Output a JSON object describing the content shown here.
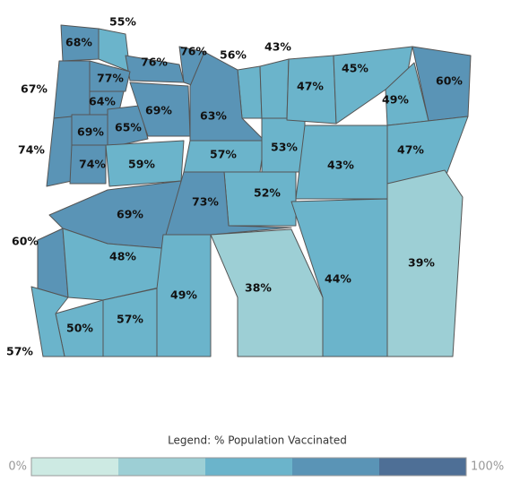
{
  "map": {
    "regions": [
      {
        "value": 68,
        "label": "68%"
      },
      {
        "value": 55,
        "label": "55%"
      },
      {
        "value": 76,
        "label": "76%"
      },
      {
        "value": 76,
        "label": "76%"
      },
      {
        "value": 56,
        "label": "56%"
      },
      {
        "value": 43,
        "label": "43%"
      },
      {
        "value": 67,
        "label": "67%"
      },
      {
        "value": 77,
        "label": "77%"
      },
      {
        "value": 64,
        "label": "64%"
      },
      {
        "value": 74,
        "label": "74%"
      },
      {
        "value": 69,
        "label": "69%"
      },
      {
        "value": 65,
        "label": "65%"
      },
      {
        "value": 69,
        "label": "69%"
      },
      {
        "value": 63,
        "label": "63%"
      },
      {
        "value": 74,
        "label": "74%"
      },
      {
        "value": 59,
        "label": "59%"
      },
      {
        "value": 57,
        "label": "57%"
      },
      {
        "value": 53,
        "label": "53%"
      },
      {
        "value": 43,
        "label": "43%"
      },
      {
        "value": 47,
        "label": "47%"
      },
      {
        "value": 45,
        "label": "45%"
      },
      {
        "value": 49,
        "label": "49%"
      },
      {
        "value": 60,
        "label": "60%"
      },
      {
        "value": 47,
        "label": "47%"
      },
      {
        "value": 52,
        "label": "52%"
      },
      {
        "value": 69,
        "label": "69%"
      },
      {
        "value": 73,
        "label": "73%"
      },
      {
        "value": 60,
        "label": "60%"
      },
      {
        "value": 48,
        "label": "48%"
      },
      {
        "value": 49,
        "label": "49%"
      },
      {
        "value": 38,
        "label": "38%"
      },
      {
        "value": 44,
        "label": "44%"
      },
      {
        "value": 39,
        "label": "39%"
      },
      {
        "value": 50,
        "label": "50%"
      },
      {
        "value": 57,
        "label": "57%"
      },
      {
        "value": 57,
        "label": "57%"
      }
    ]
  },
  "legend": {
    "title": "Legend: % Population Vaccinated",
    "min": 0,
    "max": 100,
    "min_label": "0%",
    "max_label": "100%",
    "colors": [
      "#cdeae3",
      "#9dcfd5",
      "#6bb4cb",
      "#5a94b6",
      "#4e6f96"
    ]
  }
}
